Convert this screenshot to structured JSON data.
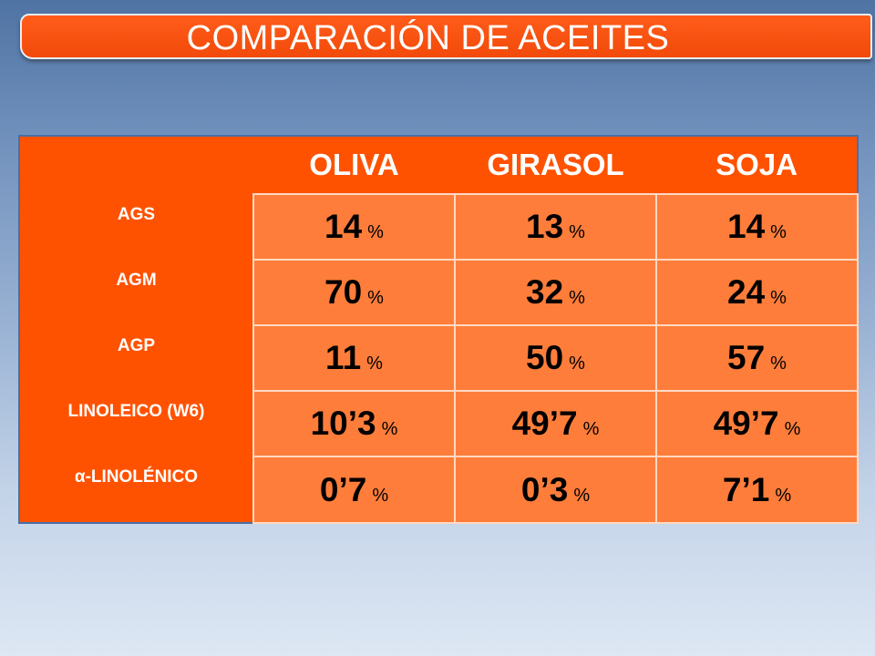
{
  "title": "COMPARACIÓN DE ACEITES",
  "columns": [
    "OLIVA",
    "GIRASOL",
    "SOJA"
  ],
  "rows": [
    {
      "label": "AGS",
      "values": [
        "14",
        "13",
        "14"
      ],
      "unit": "%"
    },
    {
      "label": "AGM",
      "values": [
        "70",
        "32",
        "24"
      ],
      "unit": "%"
    },
    {
      "label": "AGP",
      "values": [
        "11",
        "50",
        "57"
      ],
      "unit": "%"
    },
    {
      "label": "LINOLEICO (W6)",
      "values": [
        "10’3",
        "49’7",
        "49’7"
      ],
      "unit": "%"
    },
    {
      "label": "α-LINOLÉNICO",
      "values": [
        "0’7",
        "0’3",
        "7’1"
      ],
      "unit": "%"
    }
  ],
  "colors": {
    "banner": "#f24a0a",
    "table_header": "#ff5200",
    "table_cell": "#ff7d3a"
  }
}
